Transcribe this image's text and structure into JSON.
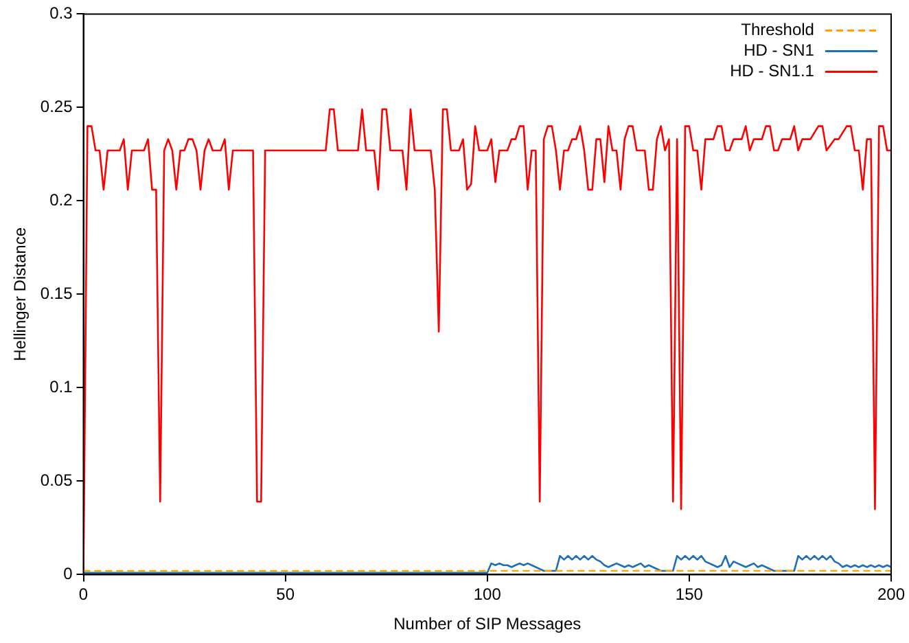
{
  "chart_data": {
    "type": "line",
    "xlabel": "Number of SIP Messages",
    "ylabel": "Hellinger Distance",
    "xlim": [
      0,
      200
    ],
    "ylim": [
      0,
      0.3
    ],
    "xticks": [
      0,
      50,
      100,
      150,
      200
    ],
    "yticks": [
      0,
      0.05,
      0.1,
      0.15,
      0.2,
      0.25,
      0.3
    ],
    "grid": false,
    "legend": "top right",
    "marker": "none",
    "series": [
      {
        "name": "Threshold",
        "color": "#ffa500",
        "line_style": "dashed",
        "x": [
          0,
          200
        ],
        "values": [
          0.002,
          0.002
        ]
      },
      {
        "name": "HD - SN1",
        "color": "#1f6fb4",
        "line_style": "solid",
        "x": [
          0,
          99,
          100,
          101,
          102,
          103,
          104,
          105,
          106,
          107,
          108,
          109,
          110,
          111,
          112,
          113,
          114,
          116,
          117,
          118,
          119,
          120,
          121,
          122,
          123,
          124,
          125,
          126,
          127,
          128,
          129,
          130,
          131,
          132,
          133,
          134,
          135,
          136,
          137,
          138,
          139,
          140,
          141,
          142,
          143,
          145,
          146,
          147,
          148,
          149,
          150,
          151,
          152,
          153,
          154,
          155,
          156,
          157,
          158,
          159,
          160,
          161,
          162,
          163,
          164,
          165,
          166,
          167,
          168,
          169,
          170,
          171,
          175,
          176,
          177,
          178,
          179,
          180,
          181,
          182,
          183,
          184,
          185,
          186,
          187,
          188,
          189,
          190,
          191,
          192,
          193,
          194,
          195,
          196,
          197,
          198,
          199,
          200
        ],
        "values": [
          0.001,
          0.001,
          0.001,
          0.006,
          0.005,
          0.006,
          0.005,
          0.005,
          0.004,
          0.005,
          0.006,
          0.005,
          0.006,
          0.005,
          0.004,
          0.003,
          0.002,
          0.002,
          0.002,
          0.01,
          0.008,
          0.01,
          0.008,
          0.01,
          0.008,
          0.01,
          0.008,
          0.01,
          0.008,
          0.007,
          0.005,
          0.004,
          0.005,
          0.006,
          0.005,
          0.004,
          0.005,
          0.004,
          0.005,
          0.006,
          0.004,
          0.005,
          0.004,
          0.003,
          0.002,
          0.002,
          0.002,
          0.01,
          0.008,
          0.01,
          0.008,
          0.01,
          0.008,
          0.01,
          0.007,
          0.006,
          0.005,
          0.004,
          0.005,
          0.01,
          0.004,
          0.007,
          0.006,
          0.005,
          0.004,
          0.005,
          0.006,
          0.004,
          0.005,
          0.004,
          0.003,
          0.002,
          0.002,
          0.002,
          0.01,
          0.008,
          0.01,
          0.008,
          0.01,
          0.008,
          0.01,
          0.008,
          0.01,
          0.007,
          0.006,
          0.004,
          0.005,
          0.004,
          0.005,
          0.004,
          0.005,
          0.004,
          0.005,
          0.004,
          0.005,
          0.004,
          0.005,
          0.004
        ]
      },
      {
        "name": "HD - SN1.1",
        "color": "#ff0000",
        "line_style": "solid",
        "x": [
          0,
          1,
          2,
          3,
          4,
          5,
          6,
          9,
          10,
          11,
          12,
          15,
          16,
          17,
          18,
          19,
          20,
          21,
          22,
          23,
          24,
          25,
          26,
          27,
          28,
          29,
          30,
          31,
          32,
          34,
          35,
          36,
          37,
          42,
          43,
          44,
          45,
          60,
          61,
          62,
          63,
          68,
          69,
          70,
          72,
          73,
          74,
          75,
          76,
          79,
          80,
          81,
          82,
          86,
          87,
          88,
          89,
          90,
          91,
          93,
          94,
          95,
          96,
          97,
          98,
          100,
          101,
          102,
          103,
          105,
          106,
          107,
          108,
          109,
          110,
          111,
          112,
          113,
          114,
          115,
          116,
          117,
          118,
          119,
          120,
          121,
          122,
          123,
          124,
          125,
          126,
          127,
          128,
          129,
          130,
          131,
          132,
          133,
          134,
          135,
          136,
          137,
          139,
          140,
          141,
          142,
          143,
          144,
          145,
          146,
          147,
          148,
          149,
          150,
          151,
          152,
          153,
          154,
          156,
          157,
          158,
          159,
          160,
          161,
          163,
          164,
          165,
          166,
          168,
          169,
          170,
          171,
          172,
          173,
          175,
          176,
          177,
          178,
          180,
          182,
          183,
          184,
          186,
          187,
          189,
          190,
          191,
          192,
          193,
          194,
          195,
          196,
          197,
          198,
          199,
          200
        ],
        "values": [
          0.0,
          0.24,
          0.24,
          0.227,
          0.227,
          0.206,
          0.227,
          0.227,
          0.233,
          0.206,
          0.227,
          0.227,
          0.233,
          0.206,
          0.206,
          0.039,
          0.227,
          0.233,
          0.227,
          0.206,
          0.227,
          0.227,
          0.233,
          0.233,
          0.227,
          0.206,
          0.227,
          0.233,
          0.227,
          0.227,
          0.233,
          0.206,
          0.227,
          0.227,
          0.039,
          0.039,
          0.227,
          0.227,
          0.249,
          0.249,
          0.227,
          0.227,
          0.249,
          0.227,
          0.227,
          0.206,
          0.249,
          0.249,
          0.227,
          0.227,
          0.206,
          0.249,
          0.227,
          0.227,
          0.206,
          0.13,
          0.249,
          0.249,
          0.227,
          0.227,
          0.233,
          0.206,
          0.209,
          0.24,
          0.227,
          0.227,
          0.233,
          0.21,
          0.227,
          0.227,
          0.233,
          0.233,
          0.24,
          0.24,
          0.206,
          0.227,
          0.227,
          0.039,
          0.233,
          0.24,
          0.24,
          0.227,
          0.206,
          0.227,
          0.227,
          0.233,
          0.233,
          0.24,
          0.227,
          0.206,
          0.206,
          0.233,
          0.233,
          0.21,
          0.24,
          0.227,
          0.227,
          0.206,
          0.233,
          0.24,
          0.24,
          0.227,
          0.227,
          0.206,
          0.206,
          0.233,
          0.24,
          0.227,
          0.233,
          0.039,
          0.233,
          0.035,
          0.24,
          0.24,
          0.227,
          0.227,
          0.206,
          0.233,
          0.233,
          0.24,
          0.24,
          0.227,
          0.227,
          0.233,
          0.233,
          0.24,
          0.227,
          0.233,
          0.233,
          0.24,
          0.24,
          0.227,
          0.227,
          0.233,
          0.233,
          0.24,
          0.227,
          0.233,
          0.233,
          0.24,
          0.24,
          0.227,
          0.233,
          0.233,
          0.24,
          0.24,
          0.227,
          0.227,
          0.206,
          0.233,
          0.233,
          0.035,
          0.24,
          0.24,
          0.227,
          0.227
        ]
      }
    ]
  }
}
